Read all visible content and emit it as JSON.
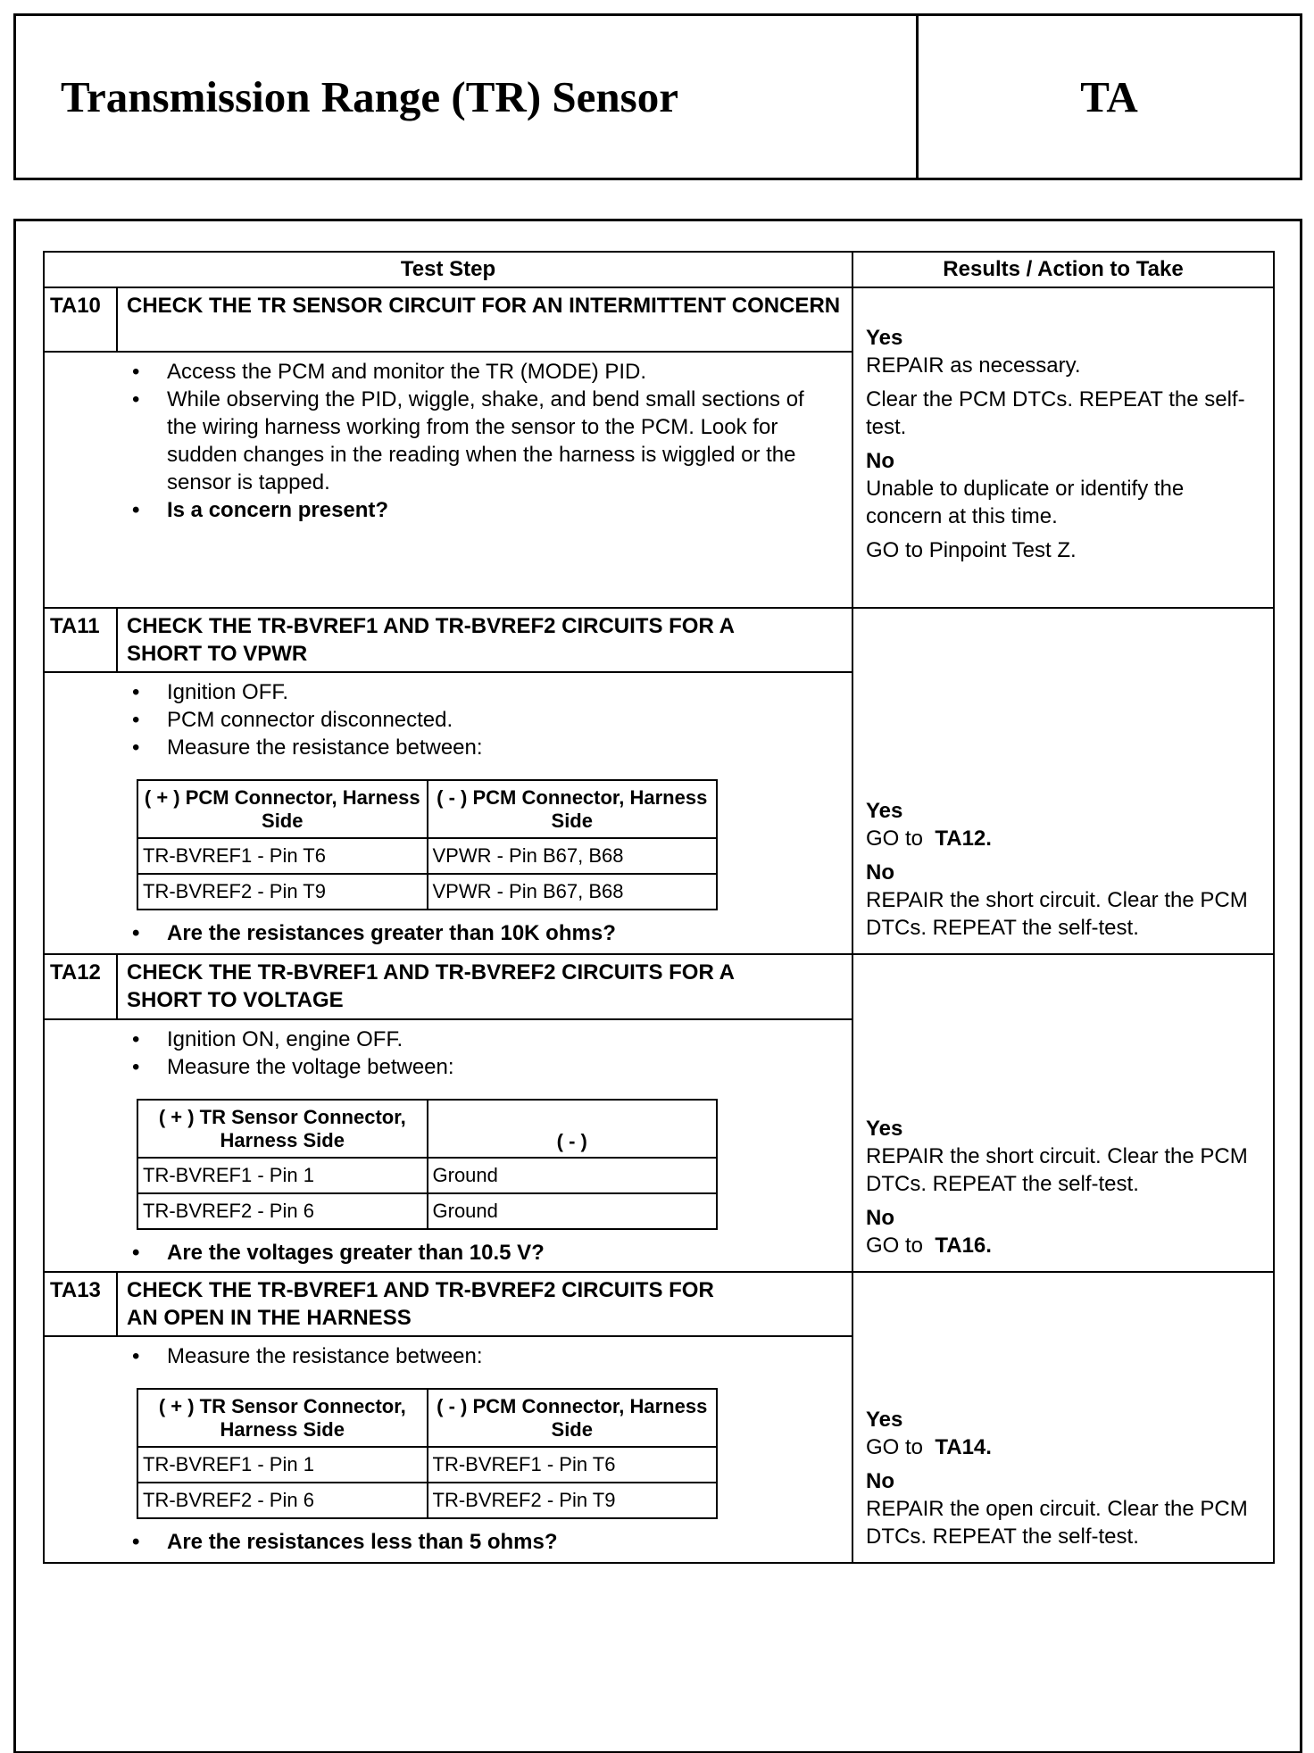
{
  "header": {
    "title": "Transmission Range (TR) Sensor",
    "code": "TA"
  },
  "table": {
    "col_test_step": "Test Step",
    "col_results": "Results / Action to Take",
    "steps": [
      {
        "id": "TA10",
        "title": "CHECK THE TR SENSOR CIRCUIT FOR AN INTERMITTENT CONCERN",
        "bullets": [
          "Access the PCM and monitor the TR (MODE) PID.",
          "While observing the PID, wiggle, shake, and bend small sections of the wiring harness working from the sensor to the PCM. Look for sudden changes in the reading when the harness is wiggled or the sensor is tapped."
        ],
        "question": "Is a concern present?",
        "results": {
          "yes_label": "Yes",
          "yes_lines": [
            "REPAIR as necessary.",
            "Clear the PCM DTCs. REPEAT the self-test."
          ],
          "no_label": "No",
          "no_lines": [
            "Unable to duplicate or identify the concern at this time.",
            "GO to Pinpoint Test Z."
          ]
        }
      },
      {
        "id": "TA11",
        "title": "CHECK THE TR-BVREF1 AND TR-BVREF2 CIRCUITS FOR A SHORT TO VPWR",
        "bullets": [
          "Ignition OFF.",
          "PCM connector disconnected.",
          "Measure the resistance between:"
        ],
        "subtable": {
          "headers": [
            "( + ) PCM Connector, Harness Side",
            "( - ) PCM Connector, Harness Side"
          ],
          "rows": [
            [
              "TR-BVREF1 - Pin T6",
              "VPWR - Pin B67, B68"
            ],
            [
              "TR-BVREF2 - Pin T9",
              "VPWR - Pin B67, B68"
            ]
          ]
        },
        "question": "Are the resistances greater than 10K ohms?",
        "results": {
          "yes_label": "Yes",
          "yes_prefix": "GO to",
          "yes_target": "TA12.",
          "no_label": "No",
          "no_lines": [
            "REPAIR the short circuit. Clear the PCM DTCs. REPEAT the self-test."
          ]
        }
      },
      {
        "id": "TA12",
        "title": "CHECK THE TR-BVREF1 AND TR-BVREF2 CIRCUITS FOR A SHORT TO VOLTAGE",
        "bullets": [
          "Ignition ON, engine OFF.",
          "Measure the voltage between:"
        ],
        "subtable": {
          "headers": [
            "( + ) TR Sensor Connector, Harness Side",
            "( - )"
          ],
          "rows": [
            [
              "TR-BVREF1 - Pin 1",
              "Ground"
            ],
            [
              "TR-BVREF2 - Pin 6",
              "Ground"
            ]
          ]
        },
        "question": "Are the voltages greater than 10.5 V?",
        "results": {
          "yes_label": "Yes",
          "yes_lines": [
            "REPAIR the short circuit. Clear the PCM DTCs. REPEAT the self-test."
          ],
          "no_label": "No",
          "no_prefix": "GO to",
          "no_target": "TA16."
        }
      },
      {
        "id": "TA13",
        "title": "CHECK THE TR-BVREF1 AND TR-BVREF2 CIRCUITS FOR AN OPEN IN THE HARNESS",
        "bullets": [
          "Measure the resistance between:"
        ],
        "subtable": {
          "headers": [
            "( + ) TR Sensor Connector, Harness Side",
            "( - ) PCM Connector, Harness Side"
          ],
          "rows": [
            [
              "TR-BVREF1 - Pin 1",
              "TR-BVREF1 - Pin T6"
            ],
            [
              "TR-BVREF2 - Pin 6",
              "TR-BVREF2 - Pin T9"
            ]
          ]
        },
        "question": "Are the resistances less than 5 ohms?",
        "results": {
          "yes_label": "Yes",
          "yes_prefix": "GO to",
          "yes_target": "TA14.",
          "no_label": "No",
          "no_lines": [
            "REPAIR the open circuit. Clear the PCM DTCs. REPEAT the self-test."
          ]
        }
      }
    ]
  }
}
